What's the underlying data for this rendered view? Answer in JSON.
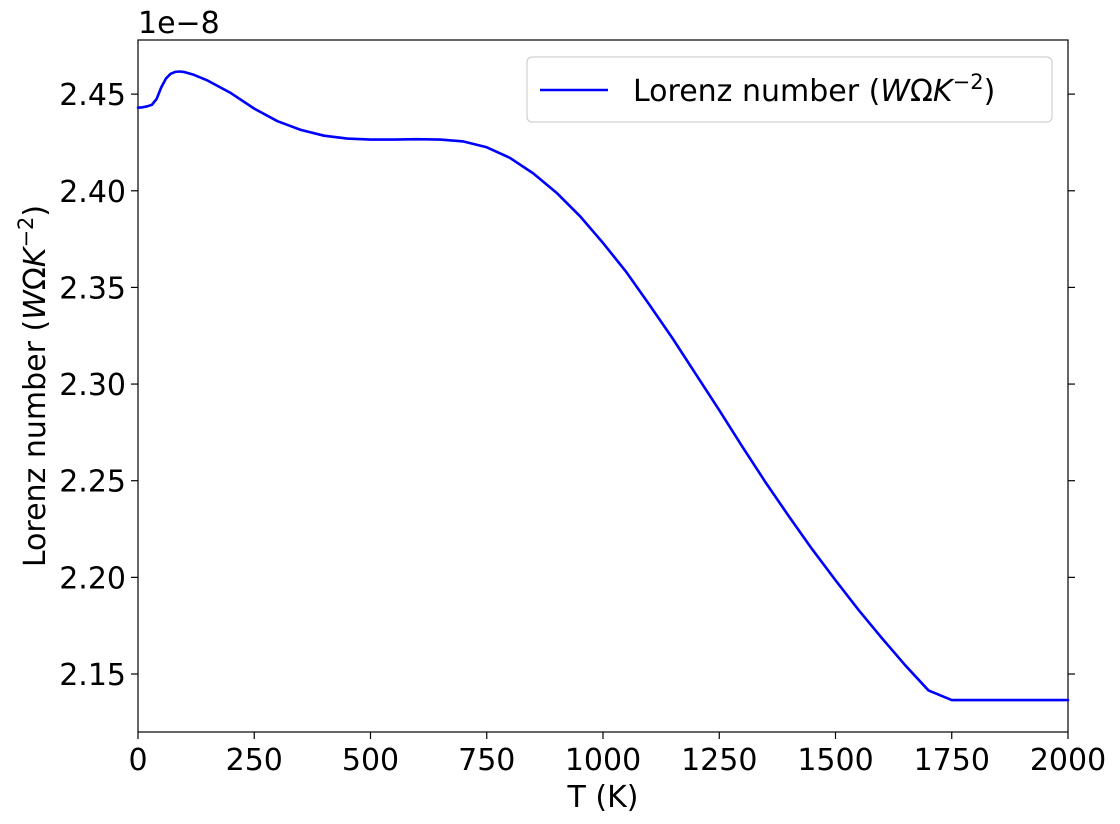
{
  "chart_data": {
    "type": "line",
    "title": "",
    "xlabel": "T (K)",
    "ylabel_text": "Lorenz number (",
    "ylabel_math_W": "W",
    "ylabel_math_Omega": "Ω",
    "ylabel_math_K": "K",
    "ylabel_math_exp": "−2",
    "ylabel_close": ")",
    "offset_text": "1e−8",
    "xlim": [
      0,
      2000
    ],
    "ylim": [
      2.12,
      2.478
    ],
    "y_scale_multiplier": 1e-08,
    "x_ticks": [
      0,
      250,
      500,
      750,
      1000,
      1250,
      1500,
      1750,
      2000
    ],
    "x_tick_labels": [
      "0",
      "250",
      "500",
      "750",
      "1000",
      "1250",
      "1500",
      "1750",
      "2000"
    ],
    "y_ticks": [
      2.15,
      2.2,
      2.25,
      2.3,
      2.35,
      2.4,
      2.45
    ],
    "y_tick_labels": [
      "2.15",
      "2.20",
      "2.25",
      "2.30",
      "2.35",
      "2.40",
      "2.45"
    ],
    "grid": false,
    "legend_position": "top-right",
    "series": [
      {
        "name_text": "Lorenz number (",
        "name_W": "W",
        "name_Omega": "Ω",
        "name_K": "K",
        "name_exp": "−2",
        "name_close": ")",
        "color": "#0000ff",
        "x": [
          0,
          10,
          20,
          30,
          40,
          50,
          60,
          70,
          80,
          90,
          100,
          120,
          150,
          200,
          250,
          300,
          350,
          400,
          450,
          500,
          550,
          600,
          650,
          700,
          750,
          800,
          850,
          900,
          950,
          1000,
          1050,
          1100,
          1150,
          1200,
          1250,
          1300,
          1350,
          1400,
          1450,
          1500,
          1550,
          1600,
          1650,
          1700,
          1750,
          1800,
          1850,
          1900,
          1950,
          2000
        ],
        "y": [
          2.443,
          2.4432,
          2.4437,
          2.4445,
          2.4475,
          2.4535,
          2.458,
          2.4605,
          2.4615,
          2.4617,
          2.4614,
          2.46,
          2.457,
          2.4505,
          2.4425,
          2.436,
          2.4315,
          2.4285,
          2.427,
          2.4265,
          2.4265,
          2.4267,
          2.4265,
          2.4255,
          2.4225,
          2.417,
          2.409,
          2.399,
          2.387,
          2.373,
          2.358,
          2.341,
          2.3235,
          2.305,
          2.2865,
          2.2675,
          2.249,
          2.2315,
          2.2145,
          2.1985,
          2.183,
          2.1685,
          2.1545,
          2.1415,
          2.1365,
          2.1365,
          2.1365,
          2.1365,
          2.1365,
          2.1365
        ]
      }
    ]
  }
}
